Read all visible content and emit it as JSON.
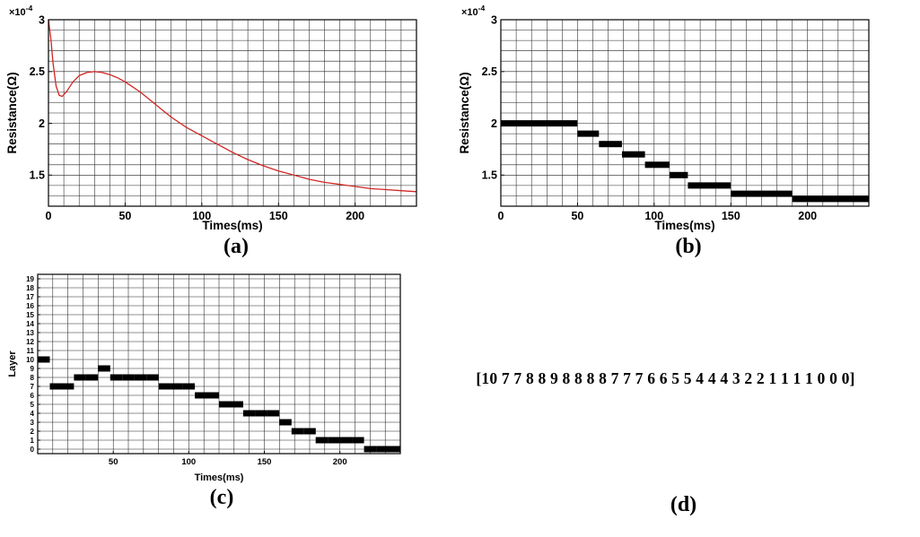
{
  "captions": {
    "a": "(a)",
    "b": "(b)",
    "c": "(c)",
    "d": "(d)"
  },
  "panel_d": {
    "text": "[10 7 7 8 8 9 8 8 8 8 7 7 7 6 6 5 5 4 4 4 3 2 2 1 1 1 1 0 0 0]"
  },
  "colors": {
    "line_red": "#d02623",
    "series_black": "#000000",
    "grid": "#222222"
  },
  "chart_data": [
    {
      "id": "a",
      "type": "line",
      "title": "",
      "xlabel": "Times(ms)",
      "ylabel": "Resistance(Ω)",
      "xlim": [
        0,
        240
      ],
      "ylim": [
        1.2,
        3.0
      ],
      "xticks": [
        0,
        50,
        100,
        150,
        200
      ],
      "yticks": [
        1.5,
        2,
        2.5,
        3
      ],
      "ytick_labels": [
        "1.5",
        "2",
        "2.5",
        "3"
      ],
      "grid_x": 10,
      "grid_y": 0.1,
      "grid_on": true,
      "exponent": {
        "base": "×10",
        "power": "-4"
      },
      "unit_scale": "1e-4",
      "line_color": "#d02623",
      "x": [
        0,
        1.5,
        3,
        5,
        7,
        9,
        12,
        16,
        20,
        25,
        30,
        35,
        40,
        45,
        50,
        55,
        60,
        65,
        70,
        75,
        80,
        85,
        90,
        95,
        100,
        110,
        120,
        130,
        140,
        150,
        160,
        170,
        180,
        190,
        200,
        210,
        220,
        230,
        240
      ],
      "y": [
        3.0,
        2.82,
        2.58,
        2.36,
        2.27,
        2.26,
        2.31,
        2.4,
        2.46,
        2.49,
        2.5,
        2.49,
        2.47,
        2.44,
        2.4,
        2.35,
        2.3,
        2.24,
        2.18,
        2.12,
        2.06,
        2.01,
        1.96,
        1.92,
        1.88,
        1.8,
        1.72,
        1.65,
        1.59,
        1.54,
        1.5,
        1.46,
        1.43,
        1.41,
        1.39,
        1.37,
        1.36,
        1.35,
        1.34
      ]
    },
    {
      "id": "b",
      "type": "steps",
      "title": "",
      "xlabel": "Times(ms)",
      "ylabel": "Resistance(Ω)",
      "xlim": [
        0,
        240
      ],
      "ylim": [
        1.2,
        3.0
      ],
      "xticks": [
        0,
        50,
        100,
        150,
        200
      ],
      "yticks": [
        1.5,
        2,
        2.5,
        3
      ],
      "ytick_labels": [
        "1.5",
        "2",
        "2.5",
        "3"
      ],
      "grid_x": 10,
      "grid_y": 0.1,
      "grid_on": true,
      "exponent": {
        "base": "×10",
        "power": "-4"
      },
      "unit_scale": "1e-4",
      "segments": [
        {
          "x0": 0,
          "x1": 50,
          "y": 2.0
        },
        {
          "x0": 50,
          "x1": 64,
          "y": 1.9
        },
        {
          "x0": 64,
          "x1": 79,
          "y": 1.8
        },
        {
          "x0": 79,
          "x1": 94,
          "y": 1.7
        },
        {
          "x0": 94,
          "x1": 110,
          "y": 1.6
        },
        {
          "x0": 110,
          "x1": 122,
          "y": 1.5
        },
        {
          "x0": 122,
          "x1": 150,
          "y": 1.4
        },
        {
          "x0": 150,
          "x1": 190,
          "y": 1.32
        },
        {
          "x0": 190,
          "x1": 240,
          "y": 1.27
        }
      ]
    },
    {
      "id": "c",
      "type": "steps",
      "title": "",
      "xlabel": "Times(ms)",
      "ylabel": "Layer",
      "xlim": [
        0,
        240
      ],
      "ylim": [
        -0.5,
        19.5
      ],
      "xticks": [
        50,
        100,
        150,
        200
      ],
      "yticks": [
        0,
        1,
        2,
        3,
        4,
        5,
        6,
        7,
        8,
        9,
        10,
        11,
        12,
        13,
        14,
        15,
        16,
        17,
        18,
        19
      ],
      "ytick_labels": [
        "0",
        "1",
        "2",
        "3",
        "4",
        "5",
        "6",
        "7",
        "8",
        "9",
        "10",
        "11",
        "12",
        "13",
        "14",
        "15",
        "16",
        "17",
        "18",
        "19"
      ],
      "grid_x": 10,
      "grid_y": 1,
      "grid_y_start": 0,
      "grid_on": true,
      "dt": 8,
      "values": [
        10,
        7,
        7,
        8,
        8,
        9,
        8,
        8,
        8,
        8,
        7,
        7,
        7,
        6,
        6,
        5,
        5,
        4,
        4,
        4,
        3,
        2,
        2,
        1,
        1,
        1,
        1,
        0,
        0,
        0
      ]
    }
  ]
}
